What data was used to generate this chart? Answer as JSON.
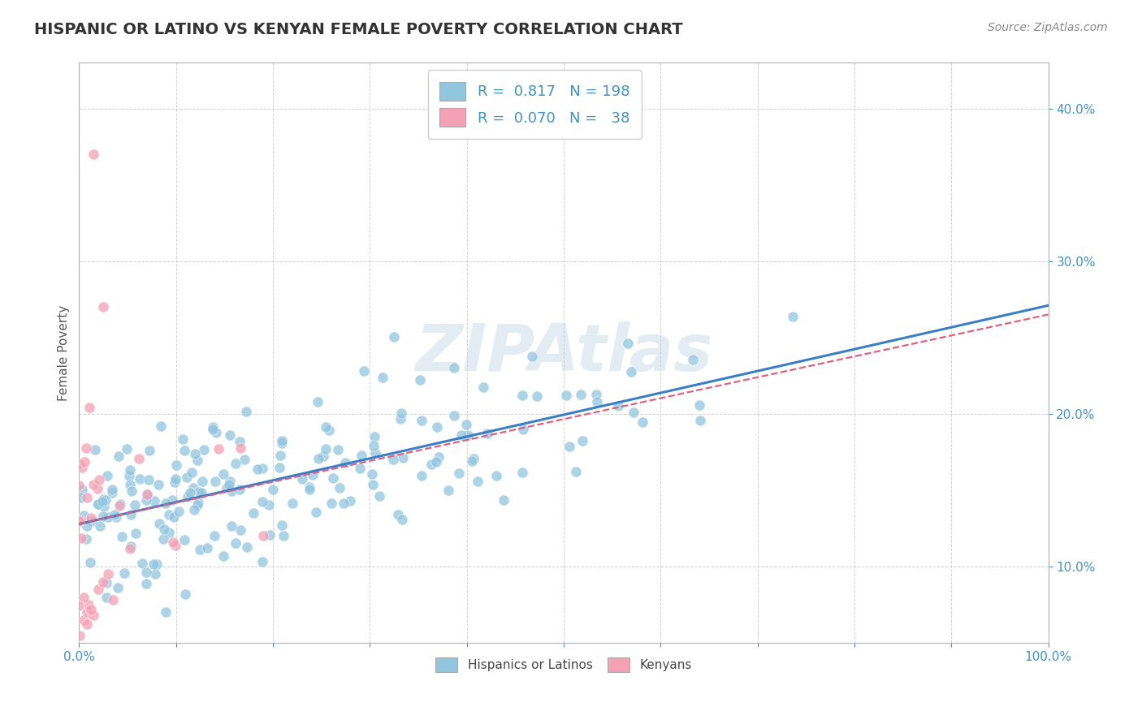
{
  "title": "HISPANIC OR LATINO VS KENYAN FEMALE POVERTY CORRELATION CHART",
  "source_text": "Source: ZipAtlas.com",
  "ylabel": "Female Poverty",
  "xlim": [
    0,
    1.0
  ],
  "ylim": [
    0.05,
    0.43
  ],
  "x_ticks": [
    0.0,
    0.1,
    0.2,
    0.3,
    0.4,
    0.5,
    0.6,
    0.7,
    0.8,
    0.9,
    1.0
  ],
  "y_ticks": [
    0.1,
    0.2,
    0.3,
    0.4
  ],
  "blue_R": "0.817",
  "blue_N": "198",
  "pink_R": "0.070",
  "pink_N": "38",
  "blue_color": "#92C5DE",
  "pink_color": "#F4A0B5",
  "blue_line_color": "#3A7EC6",
  "pink_line_color": "#E06080",
  "legend_label_blue": "Hispanics or Latinos",
  "legend_label_pink": "Kenyans",
  "watermark": "ZIPAtlas",
  "background_color": "#ffffff",
  "grid_color": "#cccccc",
  "title_color": "#333333",
  "axis_label_color": "#555555",
  "tick_label_color": "#4393C3",
  "source_color": "#888888"
}
